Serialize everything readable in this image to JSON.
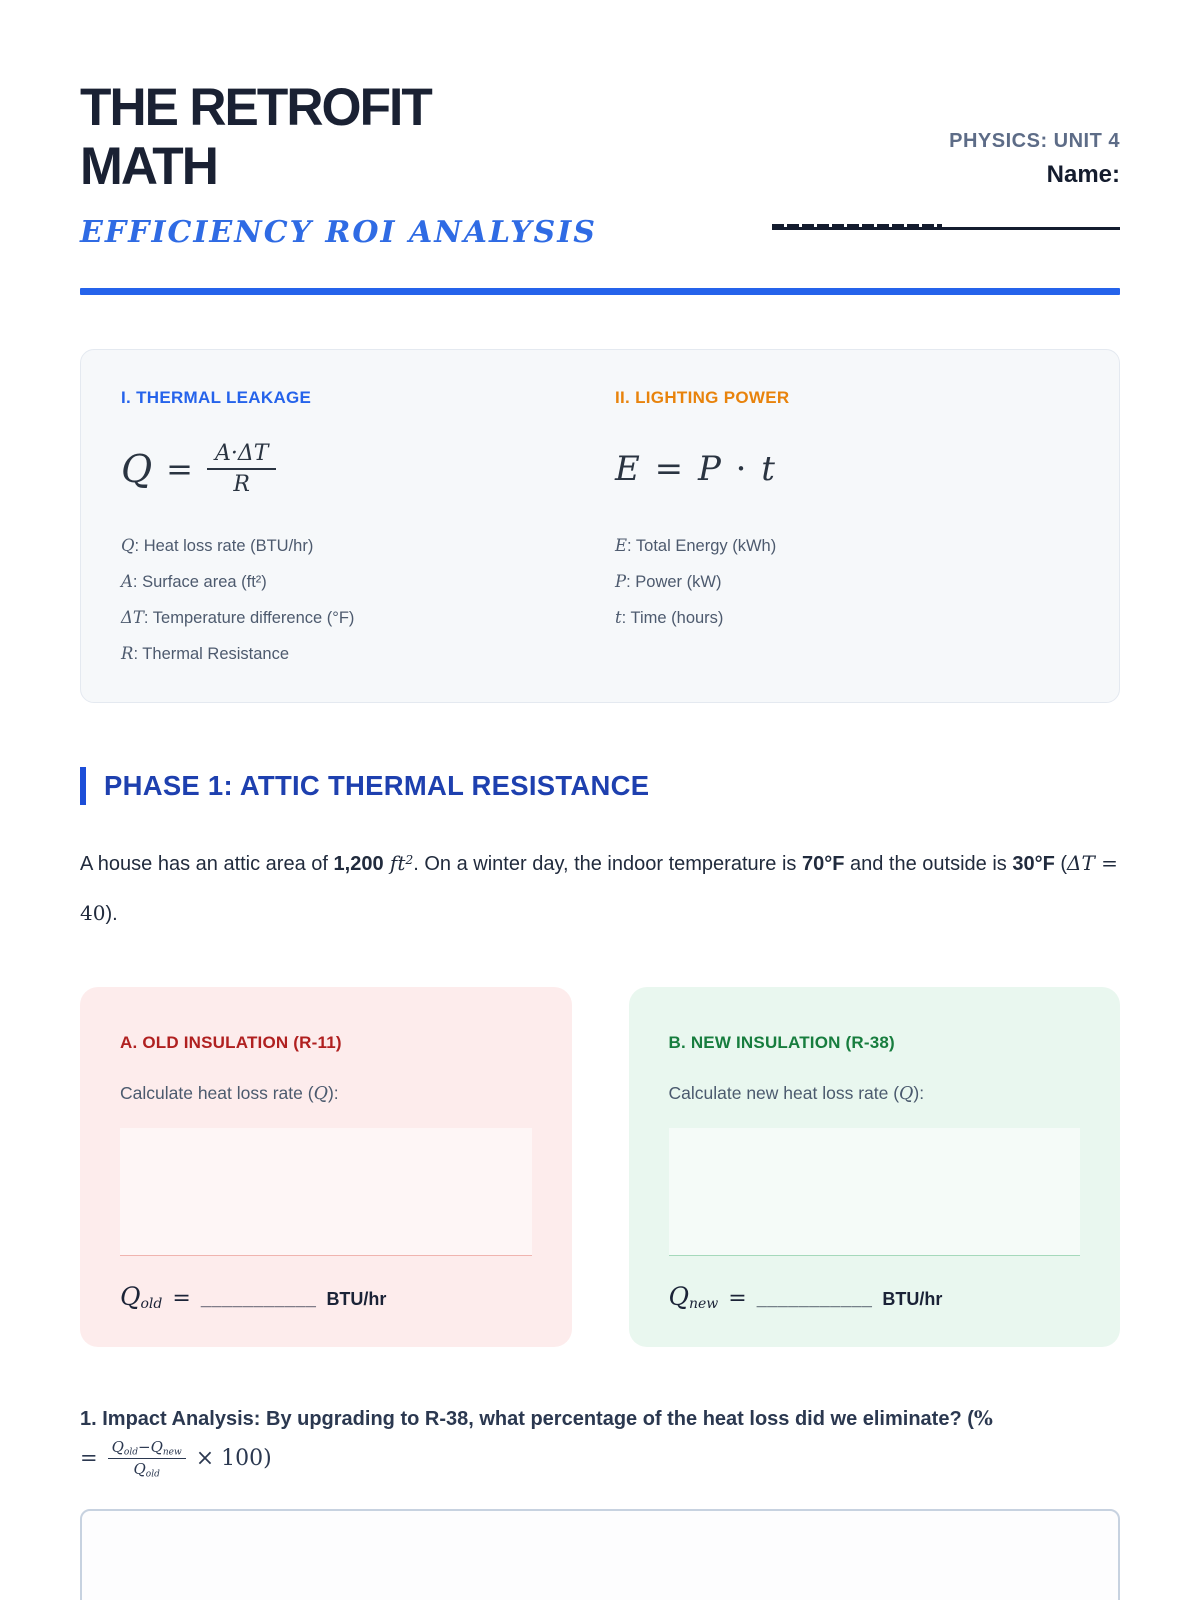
{
  "colors": {
    "accent_blue": "#2563eb",
    "accent_orange": "#e8830c",
    "phase_navy": "#1e40af",
    "old_red": "#b02020",
    "new_green": "#177d3e",
    "ink": "#1b2337"
  },
  "header": {
    "title_line1": "THE RETROFIT",
    "title_line2": "MATH",
    "subtitle": "EFFICIENCY ROI ANALYSIS",
    "course": "PHYSICS: UNIT 4",
    "name_label": "Name:"
  },
  "formula_card": {
    "thermal": {
      "heading": "I. THERMAL LEAKAGE",
      "lhs": "Q",
      "equals": "=",
      "numerator": "A·ΔT",
      "denominator": "R",
      "definitions": [
        {
          "sym": "Q",
          "rest": ": Heat loss rate (BTU/hr)"
        },
        {
          "sym": "A",
          "rest": ": Surface area (ft²)"
        },
        {
          "sym": "ΔT",
          "rest": ": Temperature difference (°F)"
        },
        {
          "sym": "R",
          "rest": ": Thermal Resistance"
        }
      ]
    },
    "lighting": {
      "heading": "II. LIGHTING POWER",
      "formula_segments": [
        {
          "t": "E",
          "s": "m"
        },
        {
          "t": " = ",
          "s": "r"
        },
        {
          "t": "P",
          "s": "m"
        },
        {
          "t": " · ",
          "s": "r"
        },
        {
          "t": "t",
          "s": "m"
        }
      ],
      "definitions": [
        {
          "sym": "E",
          "rest": ": Total Energy (kWh)"
        },
        {
          "sym": "P",
          "rest": ": Power (kW)"
        },
        {
          "sym": "t",
          "rest": ": Time (hours)"
        }
      ]
    }
  },
  "phase1": {
    "heading": "PHASE 1: ATTIC THERMAL RESISTANCE",
    "problem_segments": [
      {
        "t": "A house has an attic area of ",
        "s": "n"
      },
      {
        "t": "1,200",
        "s": "b"
      },
      {
        "t": " ft",
        "s": "m"
      },
      {
        "t": "2",
        "s": "sup"
      },
      {
        "t": ". On a winter day, the indoor temperature is ",
        "s": "n"
      },
      {
        "t": "70°F",
        "s": "b"
      },
      {
        "t": " and the outside is ",
        "s": "n"
      },
      {
        "t": "30°F",
        "s": "b"
      },
      {
        "t": " (",
        "s": "n"
      },
      {
        "t": "ΔT",
        "s": "m"
      },
      {
        "t": " = 40",
        "s": "r"
      },
      {
        "t": ").",
        "s": "n"
      }
    ],
    "box_old": {
      "title": "A. OLD INSULATION (R-11)",
      "prompt_segments": [
        {
          "t": "Calculate heat loss rate (",
          "s": "n"
        },
        {
          "t": "Q",
          "s": "m"
        },
        {
          "t": "):",
          "s": "n"
        }
      ],
      "answer_symbol": "Q",
      "answer_sub": "old",
      "equals": "=",
      "blank": "___________",
      "unit": "BTU/hr"
    },
    "box_new": {
      "title": "B. NEW INSULATION (R-38)",
      "prompt_segments": [
        {
          "t": "Calculate new heat loss rate (",
          "s": "n"
        },
        {
          "t": "Q",
          "s": "m"
        },
        {
          "t": "):",
          "s": "n"
        }
      ],
      "answer_symbol": "Q",
      "answer_sub": "new",
      "equals": "=",
      "blank": "___________",
      "unit": "BTU/hr"
    }
  },
  "question1": {
    "line1_segments": [
      {
        "t": "1. Impact Analysis: By upgrading to R-38, what percentage of the heat loss did we eliminate? (",
        "s": "b"
      },
      {
        "t": "%",
        "s": "r"
      }
    ],
    "equals": "=",
    "fraction_numerator_segments": [
      {
        "t": "Q",
        "s": "m"
      },
      {
        "t": "old",
        "s": "sub"
      },
      {
        "t": "−",
        "s": "r"
      },
      {
        "t": "Q",
        "s": "m"
      },
      {
        "t": "new",
        "s": "sub"
      }
    ],
    "fraction_denominator_segments": [
      {
        "t": "Q",
        "s": "m"
      },
      {
        "t": "old",
        "s": "sub"
      }
    ],
    "tail": "× 100)"
  }
}
